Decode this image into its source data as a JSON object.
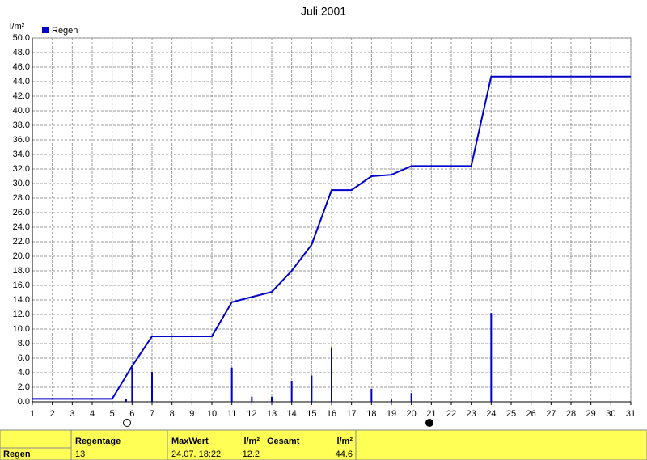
{
  "chart_data": {
    "type": "bar-line",
    "title": "Juli 2001",
    "y_label": "l/m²",
    "xlim": [
      1,
      31
    ],
    "xticks": [
      1,
      2,
      3,
      4,
      5,
      6,
      7,
      8,
      9,
      10,
      11,
      12,
      13,
      14,
      15,
      16,
      17,
      18,
      19,
      20,
      21,
      22,
      23,
      24,
      25,
      26,
      27,
      28,
      29,
      30,
      31
    ],
    "ylim": [
      0,
      50
    ],
    "yticks": [
      {
        "value": 0,
        "label": "0.0"
      },
      {
        "value": 2,
        "label": "2.0"
      },
      {
        "value": 4,
        "label": "4.0"
      },
      {
        "value": 6,
        "label": "6.0"
      },
      {
        "value": 8,
        "label": "8.0"
      },
      {
        "value": 10,
        "label": "10.0"
      },
      {
        "value": 12,
        "label": "12.0"
      },
      {
        "value": 14,
        "label": "14.0"
      },
      {
        "value": 16,
        "label": "16.0"
      },
      {
        "value": 18,
        "label": "18.0"
      },
      {
        "value": 20,
        "label": "20.0"
      },
      {
        "value": 22,
        "label": "22.0"
      },
      {
        "value": 24,
        "label": "24.0"
      },
      {
        "value": 26,
        "label": "26.0"
      },
      {
        "value": 28,
        "label": "28.0"
      },
      {
        "value": 30,
        "label": "30.0"
      },
      {
        "value": 32,
        "label": "32.0"
      },
      {
        "value": 34,
        "label": "34.0"
      },
      {
        "value": 36,
        "label": "36.0"
      },
      {
        "value": 38,
        "label": "38.0"
      },
      {
        "value": 40,
        "label": "40.0"
      },
      {
        "value": 42,
        "label": "42.0"
      },
      {
        "value": 44,
        "label": "44.0"
      },
      {
        "value": 46,
        "label": "46.0"
      },
      {
        "value": 48,
        "label": "48.0"
      },
      {
        "value": 50,
        "label": "50.0"
      }
    ],
    "grid": true,
    "series": [
      {
        "name": "Regen",
        "color": "#0000cc",
        "x": [
          5.7,
          6,
          7,
          11,
          12,
          13,
          14,
          15,
          16,
          18,
          19,
          20,
          24
        ],
        "values": [
          0.4,
          4.7,
          4.1,
          4.7,
          0.7,
          0.7,
          2.9,
          3.6,
          7.5,
          1.8,
          0.3,
          1.2,
          12.2
        ]
      },
      {
        "color": "#0000cc",
        "x": [
          1,
          5,
          6,
          7,
          10,
          11,
          12,
          13,
          14,
          15,
          16,
          17,
          18,
          19,
          20,
          23,
          24,
          31
        ],
        "values": [
          0.4,
          0.4,
          4.9,
          9.0,
          9.0,
          13.7,
          14.4,
          15.1,
          18.0,
          21.6,
          29.1,
          29.1,
          31.0,
          31.2,
          32.4,
          32.4,
          44.7,
          44.7
        ]
      }
    ]
  },
  "summary": {
    "row_label": "Regen",
    "columns": [
      {
        "header": "Regentage",
        "value": 13
      },
      {
        "header": "MaxWert",
        "value": "24.07. 18:22"
      },
      {
        "header": "l/m²",
        "value": 12.2
      },
      {
        "header": "Gesamt",
        "value": ""
      },
      {
        "header": "l/m²",
        "value": 44.6
      }
    ]
  }
}
